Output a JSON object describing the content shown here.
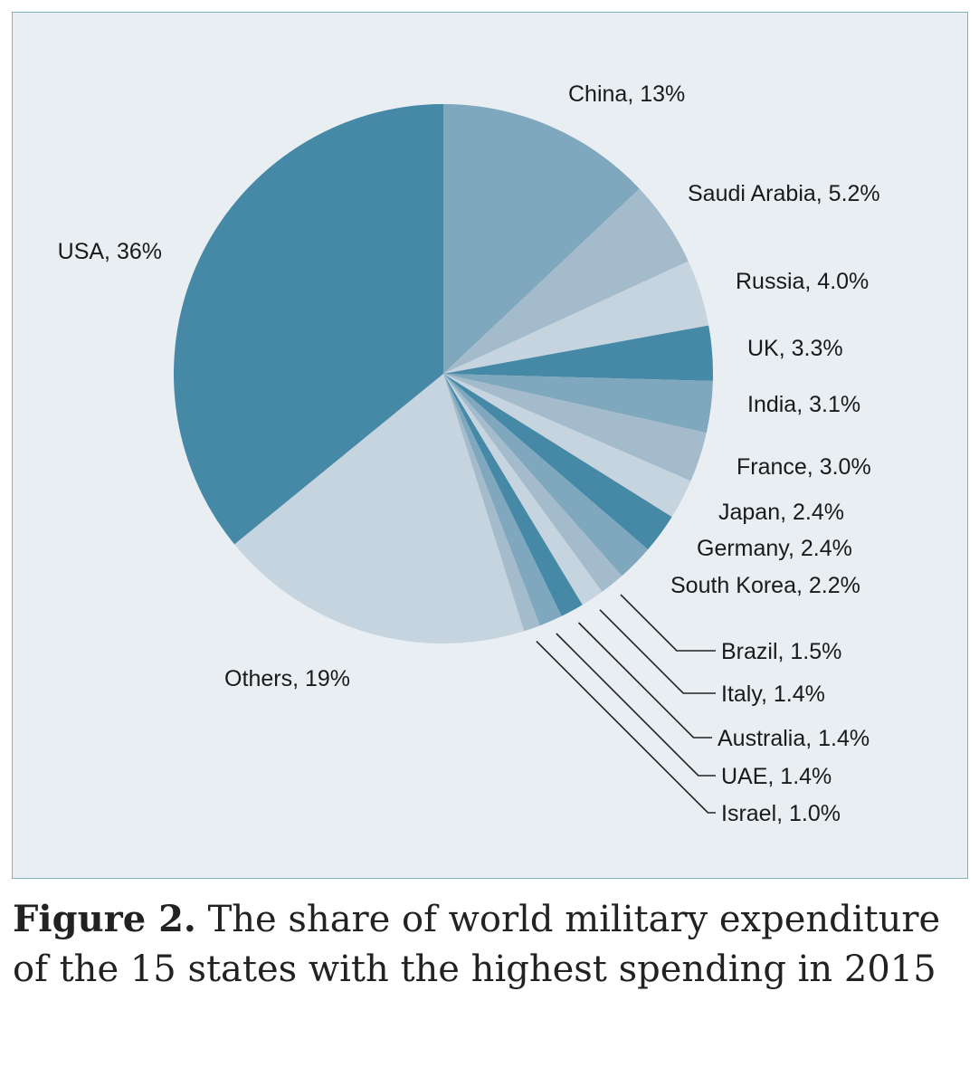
{
  "chart_data": {
    "type": "pie",
    "slices": [
      {
        "label": "China, 13%",
        "value": 13,
        "color": "#7fa7bd"
      },
      {
        "label": "Saudi Arabia, 5.2%",
        "value": 5.2,
        "color": "#a3bbcb"
      },
      {
        "label": "Russia, 4.0%",
        "value": 4.0,
        "color": "#c5d4df"
      },
      {
        "label": "UK, 3.3%",
        "value": 3.3,
        "color": "#4589a6"
      },
      {
        "label": "India, 3.1%",
        "value": 3.1,
        "color": "#7fa7bd"
      },
      {
        "label": "France, 3.0%",
        "value": 3.0,
        "color": "#a3bbcb"
      },
      {
        "label": "Japan, 2.4%",
        "value": 2.4,
        "color": "#c5d4df"
      },
      {
        "label": "Germany, 2.4%",
        "value": 2.4,
        "color": "#4589a6"
      },
      {
        "label": "South Korea, 2.2%",
        "value": 2.2,
        "color": "#7fa7bd"
      },
      {
        "label": "Brazil, 1.5%",
        "value": 1.5,
        "color": "#a3bbcb"
      },
      {
        "label": "Italy, 1.4%",
        "value": 1.4,
        "color": "#c5d4df"
      },
      {
        "label": "Australia, 1.4%",
        "value": 1.4,
        "color": "#4589a6"
      },
      {
        "label": "UAE, 1.4%",
        "value": 1.4,
        "color": "#7fa7bd"
      },
      {
        "label": "Israel, 1.0%",
        "value": 1.0,
        "color": "#a3bbcb"
      },
      {
        "label": "Others, 19%",
        "value": 19,
        "color": "#c5d4df"
      },
      {
        "label": "USA, 36%",
        "value": 36,
        "color": "#4589a6"
      }
    ],
    "start_angle": "12 o'clock",
    "direction": "clockwise",
    "background_color": "#e8eef2",
    "border_color": "#7eb7c2",
    "callout_line_color": "#222222"
  },
  "caption": {
    "label": "Figure 2.",
    "text": " The share of world military expenditure of the 15 states with the highest spending in 2015"
  }
}
